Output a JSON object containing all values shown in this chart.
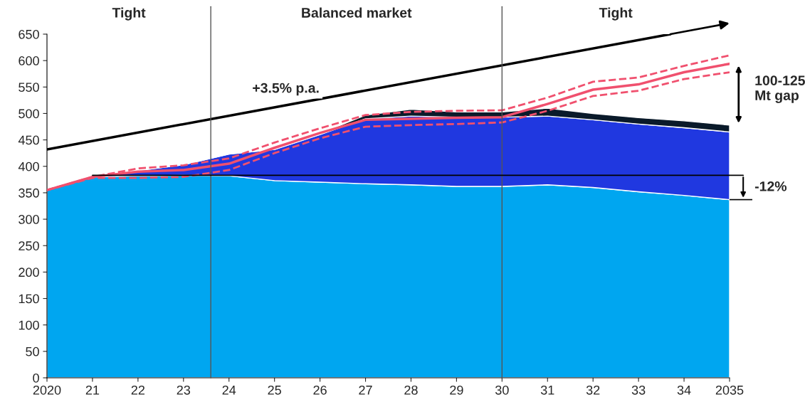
{
  "chart_data": {
    "type": "area",
    "stacked": true,
    "x": [
      2020,
      2021,
      2022,
      2023,
      2024,
      2025,
      2026,
      2027,
      2028,
      2029,
      2030,
      2031,
      2032,
      2033,
      2034,
      2035
    ],
    "series": [
      {
        "color": "#00a6f0",
        "values": [
          355,
          380,
          382,
          383,
          382,
          373,
          370,
          367,
          365,
          362,
          362,
          365,
          360,
          352,
          345,
          337
        ]
      },
      {
        "color": "#2038e0",
        "values": [
          0,
          0,
          10,
          20,
          41,
          59,
          90,
          123,
          130,
          131,
          131,
          130,
          128,
          128,
          128,
          128
        ]
      },
      {
        "color": "#0a1a2a",
        "values": [
          0,
          0,
          0,
          0,
          0,
          0,
          2,
          7,
          13,
          10,
          10,
          15,
          12,
          12,
          13,
          13
        ]
      },
      {
        "type": "line",
        "color": "#f0506e",
        "line_style": "solid",
        "values": [
          355,
          380,
          390,
          393,
          405,
          435,
          463,
          488,
          490,
          492,
          493,
          518,
          545,
          555,
          578,
          594
        ]
      },
      {
        "type": "line",
        "color": "#f0506e",
        "line_style": "dashed",
        "values": [
          355,
          380,
          396,
          402,
          415,
          445,
          472,
          497,
          503,
          505,
          506,
          530,
          560,
          568,
          590,
          610
        ]
      },
      {
        "type": "line",
        "color": "#f0506e",
        "line_style": "dashed",
        "values": [
          355,
          378,
          378,
          380,
          393,
          425,
          453,
          475,
          478,
          480,
          483,
          505,
          533,
          543,
          565,
          578
        ]
      },
      {
        "type": "line",
        "color": "#000000",
        "line_style": "solid",
        "x": [
          2020,
          2033.7
        ],
        "values": [
          432,
          650
        ]
      }
    ],
    "xlim": [
      2020,
      2035
    ],
    "xticks": [
      2020,
      {
        "value": 2021,
        "label": "21"
      },
      {
        "value": 2022,
        "label": "22"
      },
      {
        "value": 2023,
        "label": "23"
      },
      {
        "value": 2024,
        "label": "24"
      },
      {
        "value": 2025,
        "label": "25"
      },
      {
        "value": 2026,
        "label": "26"
      },
      {
        "value": 2027,
        "label": "27"
      },
      {
        "value": 2028,
        "label": "28"
      },
      {
        "value": 2029,
        "label": "29"
      },
      {
        "value": 2030,
        "label": "30"
      },
      {
        "value": 2031,
        "label": "31"
      },
      {
        "value": 2032,
        "label": "32"
      },
      {
        "value": 2033,
        "label": "33"
      },
      {
        "value": 2034,
        "label": "34"
      },
      2035
    ],
    "ylim": [
      0,
      650
    ],
    "yticks": [
      0,
      50,
      100,
      150,
      200,
      250,
      300,
      350,
      400,
      450,
      500,
      550,
      600,
      650
    ],
    "ref_lines": [
      {
        "axis": "x",
        "value": 2023.6,
        "color": "#555555"
      },
      {
        "axis": "x",
        "value": 2030,
        "color": "#555555"
      },
      {
        "axis": "y",
        "value": 383,
        "color": "#000000"
      }
    ],
    "annotations": [
      "Tight",
      "Balanced market",
      "Tight",
      "+3.5% p.a.",
      "100-125\nMt gap",
      "-12%"
    ],
    "grid": false,
    "legend": false
  }
}
